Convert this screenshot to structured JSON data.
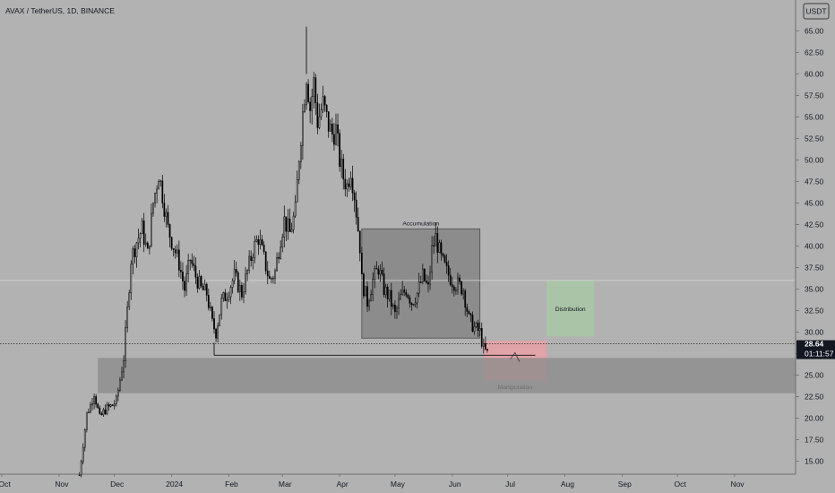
{
  "header": {
    "symbol_line": "AVAX / TetherUS, 1D, BINANCE",
    "currency_badge": "USDT"
  },
  "price_badge": {
    "price": "28.64",
    "countdown": "01:11:57"
  },
  "colors": {
    "background": "#b2b2b2",
    "candle": "#000000",
    "accumulation_box": "#7f7f7f",
    "manipulation_box": "#e8a0a6",
    "distribution_box": "#a7c5a4",
    "demand_zone": "#8a8a8a",
    "price_badge_bg": "#131722"
  },
  "chart_data": {
    "type": "candlestick",
    "title": "AVAX / TetherUS, 1D, BINANCE",
    "ylim": [
      12.5,
      67.5
    ],
    "y_ticks": [
      "15.00",
      "17.50",
      "20.00",
      "22.50",
      "25.00",
      "27.50",
      "30.00",
      "32.50",
      "35.00",
      "37.50",
      "40.00",
      "42.50",
      "45.00",
      "47.50",
      "50.00",
      "52.50",
      "55.00",
      "57.50",
      "60.00",
      "62.50",
      "65.00"
    ],
    "x_ticks": [
      "Oct",
      "Nov",
      "Dec",
      "2024",
      "Feb",
      "Mar",
      "Apr",
      "May",
      "Jun",
      "Jul",
      "Aug",
      "Sep",
      "Oct",
      "Nov"
    ],
    "x_range": [
      "2023-09-30",
      "2024-12-04"
    ],
    "series": [
      {
        "points": [
          [
            "2023-11-12",
            13.4
          ],
          [
            "2023-11-14",
            17.0
          ],
          [
            "2023-11-16",
            20.5
          ],
          [
            "2023-11-18",
            21.5
          ],
          [
            "2023-11-20",
            23.0
          ],
          [
            "2023-11-23",
            20.0
          ],
          [
            "2023-11-26",
            21.0
          ],
          [
            "2023-11-30",
            21.5
          ],
          [
            "2023-12-02",
            22.0
          ],
          [
            "2023-12-04",
            24.5
          ],
          [
            "2023-12-06",
            27.0
          ],
          [
            "2023-12-08",
            32.5
          ],
          [
            "2023-12-10",
            38.5
          ],
          [
            "2023-12-13",
            40.5
          ],
          [
            "2023-12-16",
            42.0
          ],
          [
            "2023-12-19",
            39.0
          ],
          [
            "2023-12-22",
            45.0
          ],
          [
            "2023-12-25",
            48.5
          ],
          [
            "2023-12-27",
            46.0
          ],
          [
            "2023-12-30",
            42.0
          ],
          [
            "2024-01-02",
            40.0
          ],
          [
            "2024-01-05",
            38.0
          ],
          [
            "2024-01-08",
            35.0
          ],
          [
            "2024-01-11",
            38.5
          ],
          [
            "2024-01-14",
            36.5
          ],
          [
            "2024-01-17",
            35.0
          ],
          [
            "2024-01-20",
            34.5
          ],
          [
            "2024-01-23",
            31.0
          ],
          [
            "2024-01-25",
            30.0
          ],
          [
            "2024-01-28",
            33.5
          ],
          [
            "2024-01-31",
            34.5
          ],
          [
            "2024-02-04",
            36.5
          ],
          [
            "2024-02-08",
            34.5
          ],
          [
            "2024-02-11",
            37.0
          ],
          [
            "2024-02-14",
            39.5
          ],
          [
            "2024-02-17",
            41.0
          ],
          [
            "2024-02-20",
            38.5
          ],
          [
            "2024-02-23",
            36.0
          ],
          [
            "2024-02-26",
            37.0
          ],
          [
            "2024-02-29",
            41.0
          ],
          [
            "2024-03-02",
            43.0
          ],
          [
            "2024-03-05",
            41.5
          ],
          [
            "2024-03-08",
            44.0
          ],
          [
            "2024-03-10",
            50.5
          ],
          [
            "2024-03-12",
            55.5
          ],
          [
            "2024-03-14",
            60.0
          ],
          [
            "2024-03-16",
            56.0
          ],
          [
            "2024-03-18",
            59.0
          ],
          [
            "2024-03-20",
            54.5
          ],
          [
            "2024-03-23",
            56.5
          ],
          [
            "2024-03-26",
            54.0
          ],
          [
            "2024-03-28",
            53.0
          ],
          [
            "2024-03-30",
            53.5
          ],
          [
            "2024-04-01",
            50.0
          ],
          [
            "2024-04-03",
            48.0
          ],
          [
            "2024-04-05",
            47.0
          ],
          [
            "2024-04-07",
            49.0
          ],
          [
            "2024-04-09",
            46.0
          ],
          [
            "2024-04-12",
            40.0
          ],
          [
            "2024-04-13",
            36.0
          ],
          [
            "2024-04-16",
            33.5
          ],
          [
            "2024-04-19",
            36.0
          ],
          [
            "2024-04-22",
            37.5
          ],
          [
            "2024-04-25",
            35.0
          ],
          [
            "2024-04-28",
            34.0
          ],
          [
            "2024-05-01",
            32.0
          ],
          [
            "2024-05-04",
            34.0
          ],
          [
            "2024-05-07",
            35.0
          ],
          [
            "2024-05-10",
            33.5
          ],
          [
            "2024-05-13",
            34.5
          ],
          [
            "2024-05-16",
            36.5
          ],
          [
            "2024-05-19",
            35.0
          ],
          [
            "2024-05-21",
            39.5
          ],
          [
            "2024-05-23",
            41.0
          ],
          [
            "2024-05-26",
            38.5
          ],
          [
            "2024-05-29",
            37.0
          ],
          [
            "2024-06-01",
            36.0
          ],
          [
            "2024-06-04",
            35.5
          ],
          [
            "2024-06-07",
            35.0
          ],
          [
            "2024-06-10",
            31.5
          ],
          [
            "2024-06-13",
            30.5
          ],
          [
            "2024-06-16",
            30.0
          ],
          [
            "2024-06-18",
            28.0
          ],
          [
            "2024-06-20",
            27.5
          ]
        ]
      }
    ],
    "last_price": 28.64,
    "horizontal_levels": [
      {
        "value": 28.64,
        "style": "dotted"
      },
      {
        "value": 36.0,
        "style": "solid-thin"
      }
    ],
    "support_line": {
      "value": 27.3,
      "from": "2024-01-24",
      "to": "2024-07-16"
    },
    "zones": [
      {
        "label": "Accumulation",
        "x0": "2024-04-13",
        "x1": "2024-06-16",
        "y0": 29.3,
        "y1": 42.0
      },
      {
        "label": "Manipulation",
        "x0": "2024-06-18",
        "x1": "2024-07-22",
        "y0": 24.3,
        "y1": 29.0
      },
      {
        "label": "Distribution",
        "x0": "2024-07-22",
        "x1": "2024-08-17",
        "y0": 29.5,
        "y1": 36.0
      },
      {
        "label": "",
        "x0": "2023-11-22",
        "x1": "2024-12-04",
        "y0": 22.9,
        "y1": 27.0
      }
    ]
  }
}
